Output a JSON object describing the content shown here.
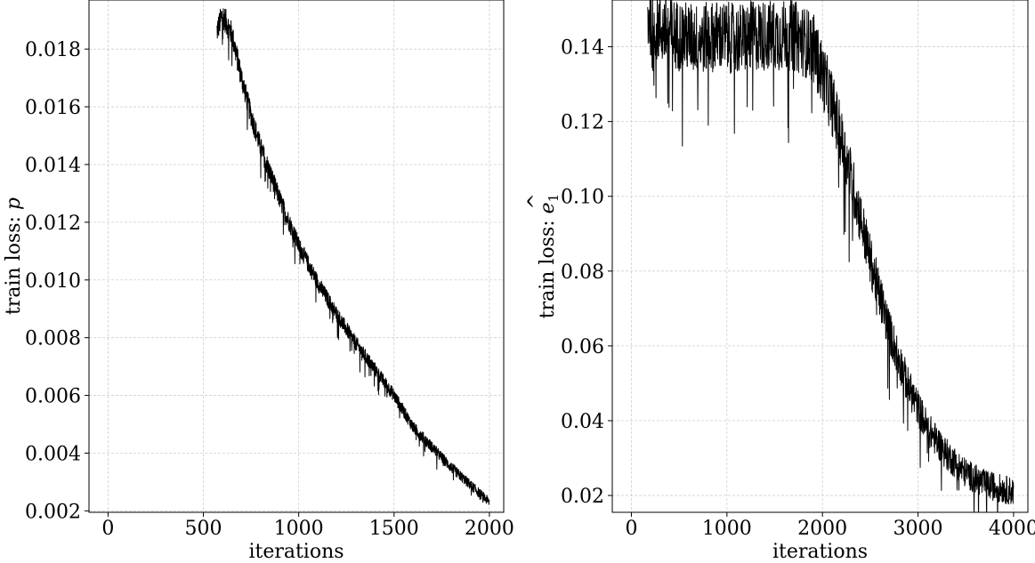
{
  "chart_data": [
    {
      "type": "line",
      "xlabel": "iterations",
      "ylabel_prefix": "train loss: ",
      "ylabel_symbol": "p",
      "ylabel_hat": "^",
      "ylabel_subscript": "",
      "xlim": [
        -100,
        2075
      ],
      "ylim": [
        0.00195,
        0.0197
      ],
      "xticks": [
        0,
        500,
        1000,
        1500,
        2000
      ],
      "xtick_labels": [
        "0",
        "500",
        "1000",
        "1500",
        "2000"
      ],
      "yticks": [
        0.002,
        0.004,
        0.006,
        0.008,
        0.01,
        0.012,
        0.014,
        0.016,
        0.018
      ],
      "ytick_labels": [
        "0.002",
        "0.004",
        "0.006",
        "0.008",
        "0.010",
        "0.012",
        "0.014",
        "0.016",
        "0.018"
      ],
      "grid": true,
      "color": "#000000",
      "series": [
        {
          "x": [
            570,
            600,
            650,
            700,
            750,
            800,
            850,
            900,
            950,
            1000,
            1100,
            1200,
            1300,
            1400,
            1500,
            1600,
            1700,
            1800,
            1900,
            2000
          ],
          "values": [
            0.0186,
            0.0192,
            0.0185,
            0.017,
            0.0157,
            0.0146,
            0.0137,
            0.0128,
            0.012,
            0.0112,
            0.0099,
            0.0088,
            0.0078,
            0.0069,
            0.006,
            0.0049,
            0.0042,
            0.0035,
            0.0029,
            0.0023
          ],
          "noise": 0.00045
        }
      ]
    },
    {
      "type": "line",
      "xlabel": "iterations",
      "ylabel_prefix": "train loss: ",
      "ylabel_symbol": "e",
      "ylabel_hat": "^",
      "ylabel_subscript": "1",
      "xlim": [
        -200,
        4150
      ],
      "ylim": [
        0.0155,
        0.1525
      ],
      "xticks": [
        0,
        1000,
        2000,
        3000,
        4000
      ],
      "xtick_labels": [
        "0",
        "1000",
        "2000",
        "3000",
        "4000"
      ],
      "yticks": [
        0.02,
        0.04,
        0.06,
        0.08,
        0.1,
        0.12,
        0.14
      ],
      "ytick_labels": [
        "0.02",
        "0.04",
        "0.06",
        "0.08",
        "0.10",
        "0.12",
        "0.14"
      ],
      "grid": true,
      "color": "#000000",
      "series": [
        {
          "x": [
            170,
            300,
            500,
            700,
            900,
            1100,
            1300,
            1500,
            1700,
            1900,
            2100,
            2300,
            2500,
            2700,
            2900,
            3100,
            3300,
            3500,
            3700,
            4000
          ],
          "values": [
            0.148,
            0.145,
            0.143,
            0.142,
            0.143,
            0.142,
            0.143,
            0.143,
            0.143,
            0.14,
            0.125,
            0.105,
            0.083,
            0.064,
            0.049,
            0.038,
            0.031,
            0.026,
            0.023,
            0.021
          ],
          "noise": 0.01
        }
      ]
    }
  ]
}
